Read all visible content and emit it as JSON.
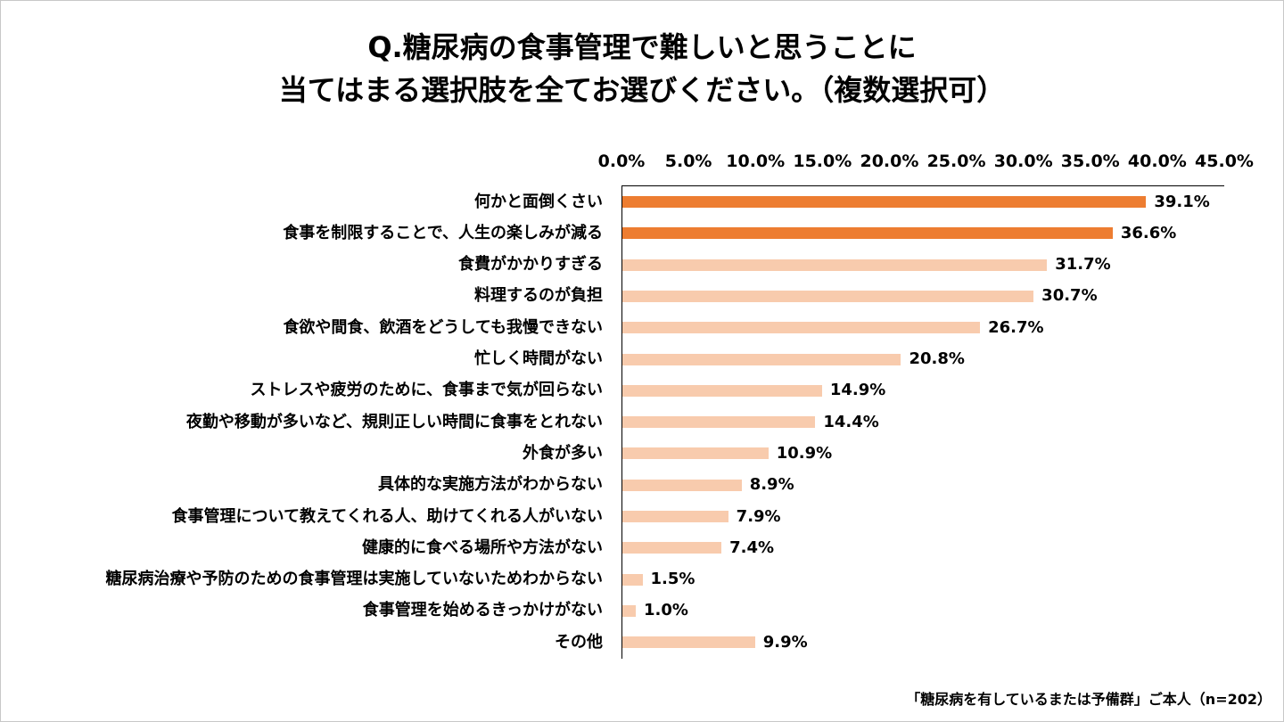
{
  "chart_data": {
    "type": "bar",
    "orientation": "horizontal",
    "title": [
      "Q.糖尿病の食事管理で難しいと思うことに",
      "当てはまる選択肢を全てお選びください。（複数選択可）"
    ],
    "xlim": [
      0,
      45
    ],
    "x_ticks": [
      "0.0%",
      "5.0%",
      "10.0%",
      "15.0%",
      "20.0%",
      "25.0%",
      "30.0%",
      "35.0%",
      "40.0%",
      "45.0%"
    ],
    "axis_position": "top",
    "grid": false,
    "categories": [
      "何かと面倒くさい",
      "食事を制限することで、人生の楽しみが減る",
      "食費がかかりすぎる",
      "料理するのが負担",
      "食欲や間食、飲酒をどうしても我慢できない",
      "忙しく時間がない",
      "ストレスや疲労のために、食事まで気が回らない",
      "夜勤や移動が多いなど、規則正しい時間に食事をとれない",
      "外食が多い",
      "具体的な実施方法がわからない",
      "食事管理について教えてくれる人、助けてくれる人がいない",
      "健康的に食べる場所や方法がない",
      "糖尿病治療や予防のための食事管理は実施していないためわからない",
      "食事管理を始めるきっかけがない",
      "その他"
    ],
    "values": [
      39.1,
      36.6,
      31.7,
      30.7,
      26.7,
      20.8,
      14.9,
      14.4,
      10.9,
      8.9,
      7.9,
      7.4,
      1.5,
      1.0,
      9.9
    ],
    "value_labels": [
      "39.1%",
      "36.6%",
      "31.7%",
      "30.7%",
      "26.7%",
      "20.8%",
      "14.9%",
      "14.4%",
      "10.9%",
      "8.9%",
      "7.9%",
      "7.4%",
      "1.5%",
      "1.0%",
      "9.9%"
    ],
    "highlight_count": 2,
    "colors": {
      "highlight": "#ed7d31",
      "normal": "#f8cbad",
      "axis": "#000000"
    }
  },
  "footnote": "「糖尿病を有しているまたは予備群」ご本人（n=202）"
}
